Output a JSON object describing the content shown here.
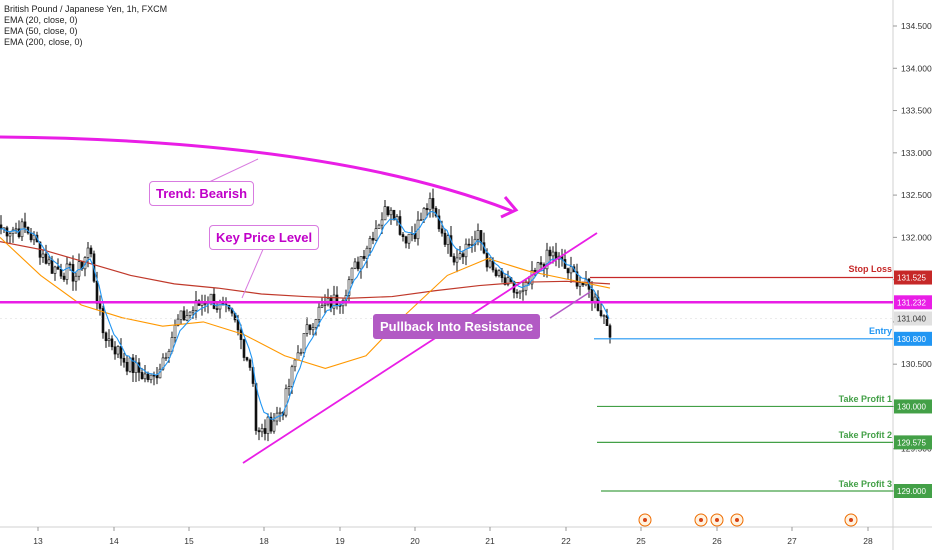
{
  "legend": {
    "symbol": "British Pound / Japanese Yen, 1h, FXCM",
    "ema20": "EMA (20, close, 0)",
    "ema50": "EMA (50, close, 0)",
    "ema200": "EMA (200, close, 0)"
  },
  "annotations": {
    "trend": "Trend: Bearish",
    "key_level": "Key Price Level",
    "pullback": "Pullback Into Resistance"
  },
  "levels": {
    "stop_loss": {
      "label": "Stop Loss",
      "value": "131.525",
      "color": "#c62828"
    },
    "key": {
      "value": "131.232",
      "color": "#e91ee6"
    },
    "current": {
      "value": "131.040",
      "color": "#e0e0e0"
    },
    "entry": {
      "label": "Entry",
      "value": "130.800",
      "color": "#2196f3"
    },
    "tp1": {
      "label": "Take Profit 1",
      "value": "130.000",
      "color": "#43a047"
    },
    "tp2": {
      "label": "Take Profit 2",
      "value": "129.575",
      "color": "#43a047"
    },
    "tp3": {
      "label": "Take Profit 3",
      "value": "129.000",
      "color": "#43a047"
    }
  },
  "colors": {
    "ema20": "#2196f3",
    "ema50": "#ff9800",
    "ema200": "#c0392b",
    "trendline": "#e91ee6",
    "candle": "#111111"
  },
  "chart_data": {
    "type": "candlestick",
    "title": "British Pound / Japanese Yen, 1h, FXCM",
    "y_ticks": [
      "134.500",
      "134.000",
      "133.500",
      "133.000",
      "132.500",
      "132.000",
      "131.500",
      "131.000",
      "130.500",
      "130.000",
      "129.500",
      "129.000"
    ],
    "x_ticks": [
      "13",
      "14",
      "15",
      "18",
      "19",
      "20",
      "21",
      "22",
      "25",
      "26",
      "27",
      "28"
    ],
    "ylim": [
      128.78,
      134.6
    ],
    "close_path": [
      {
        "t": "12 20:00",
        "price": 132.1
      },
      {
        "t": "13 04:00",
        "price": 131.65
      },
      {
        "t": "13 12:00",
        "price": 131.55
      },
      {
        "t": "13 16:00",
        "price": 131.9
      },
      {
        "t": "13 20:00",
        "price": 130.9
      },
      {
        "t": "14 04:00",
        "price": 130.5
      },
      {
        "t": "14 12:00",
        "price": 130.3
      },
      {
        "t": "14 20:00",
        "price": 131.0
      },
      {
        "t": "15 06:00",
        "price": 131.3
      },
      {
        "t": "15 14:00",
        "price": 131.0
      },
      {
        "t": "15 20:00",
        "price": 130.4
      },
      {
        "t": "17 20:00",
        "price": 129.8
      },
      {
        "t": "17 22:00",
        "price": 129.65
      },
      {
        "t": "18 06:00",
        "price": 130.0
      },
      {
        "t": "18 10:00",
        "price": 130.6
      },
      {
        "t": "18 16:00",
        "price": 131.1
      },
      {
        "t": "19 00:00",
        "price": 131.3
      },
      {
        "t": "19 04:00",
        "price": 131.6
      },
      {
        "t": "19 12:00",
        "price": 132.2
      },
      {
        "t": "19 16:00",
        "price": 132.4
      },
      {
        "t": "19 20:00",
        "price": 132.0
      },
      {
        "t": "20 00:00",
        "price": 132.1
      },
      {
        "t": "20 04:00",
        "price": 132.4
      },
      {
        "t": "20 08:00",
        "price": 132.1
      },
      {
        "t": "20 12:00",
        "price": 131.8
      },
      {
        "t": "20 20:00",
        "price": 132.0
      },
      {
        "t": "21 00:00",
        "price": 131.6
      },
      {
        "t": "21 06:00",
        "price": 131.4
      },
      {
        "t": "21 10:00",
        "price": 131.3
      },
      {
        "t": "21 16:00",
        "price": 131.7
      },
      {
        "t": "21 20:00",
        "price": 131.8
      },
      {
        "t": "22 00:00",
        "price": 131.6
      },
      {
        "t": "22 04:00",
        "price": 131.5
      },
      {
        "t": "22 10:00",
        "price": 131.2
      },
      {
        "t": "22 14:00",
        "price": 130.9
      },
      {
        "t": "22 18:00",
        "price": 131.1
      },
      {
        "t": "22 22:00",
        "price": 131.05
      }
    ],
    "ema200_path": [
      131.95,
      131.85,
      131.7,
      131.55,
      131.45,
      131.4,
      131.33,
      131.3,
      131.28,
      131.3,
      131.37,
      131.43,
      131.47,
      131.48,
      131.45
    ],
    "ema50_path": [
      132.0,
      131.55,
      131.2,
      131.05,
      130.95,
      131.0,
      130.85,
      130.6,
      130.45,
      130.6,
      131.1,
      131.55,
      131.75,
      131.6,
      131.5,
      131.4
    ]
  }
}
